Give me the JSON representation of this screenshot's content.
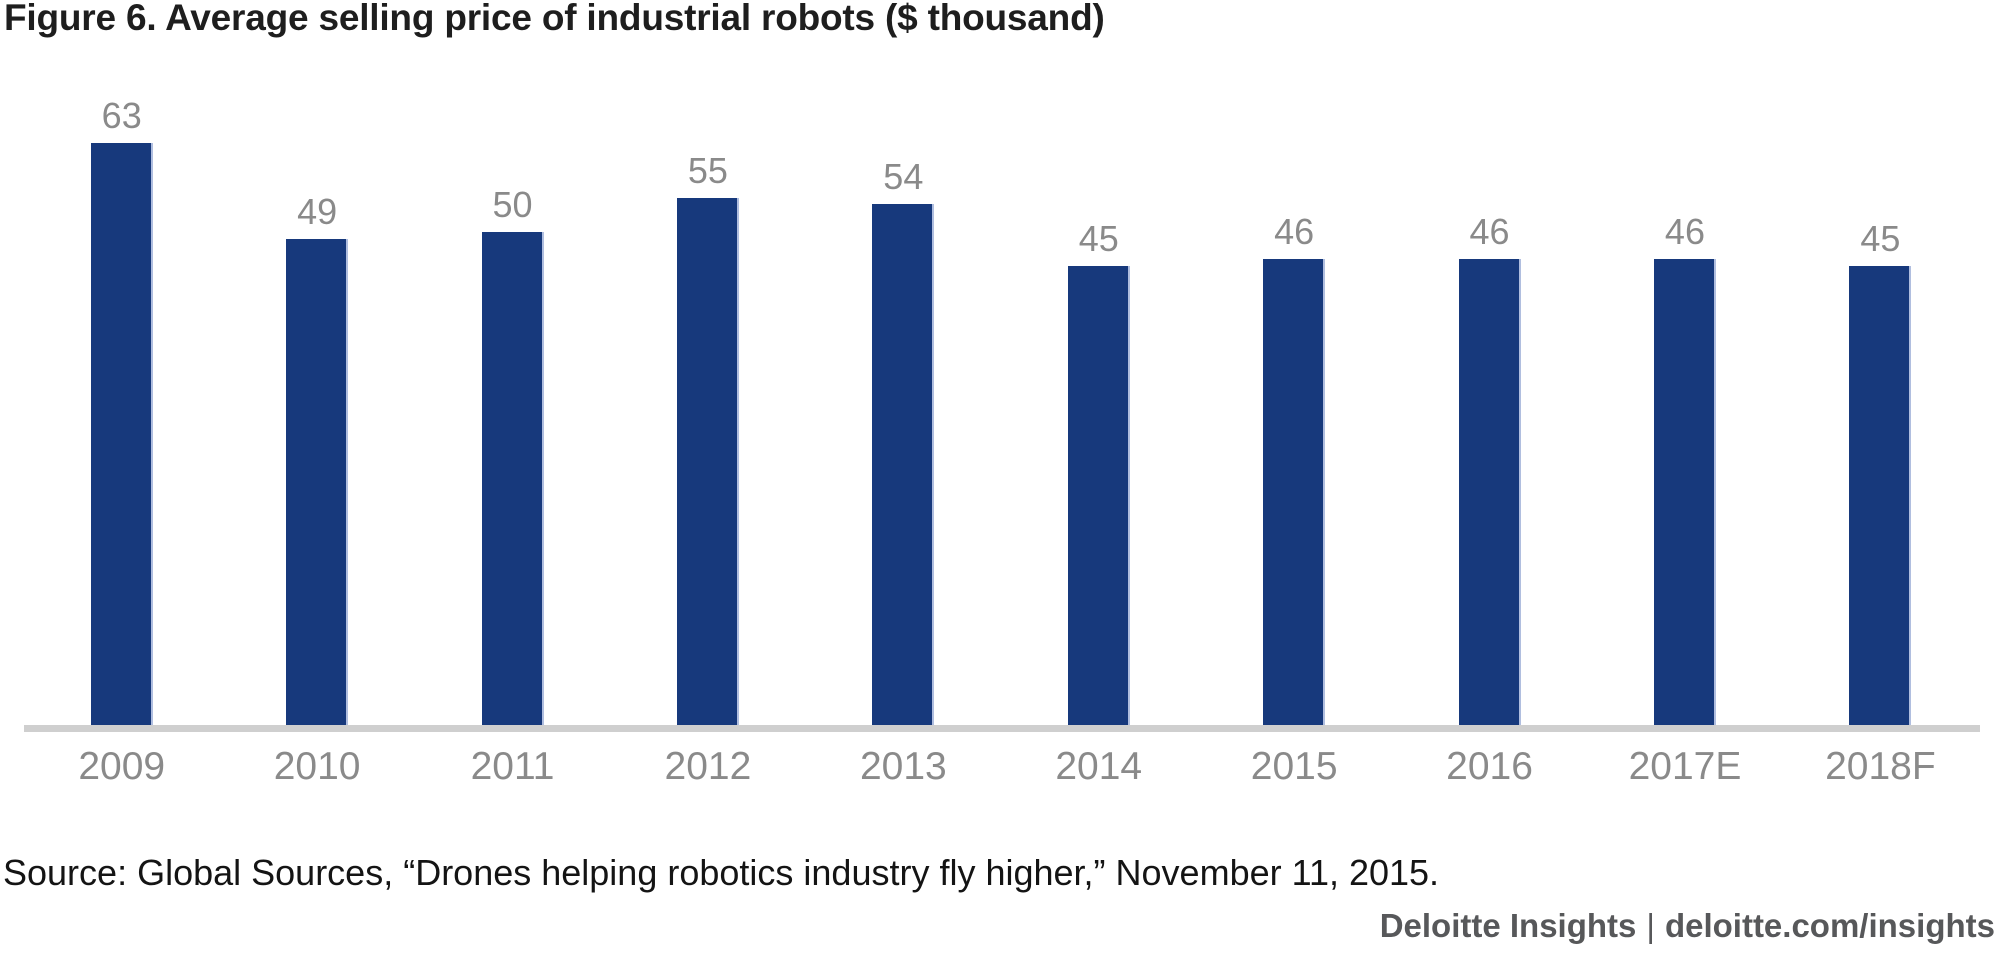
{
  "figure": {
    "title": "Figure 6. Average selling price of industrial robots ($ thousand)"
  },
  "chart_data": {
    "type": "bar",
    "categories": [
      "2009",
      "2010",
      "2011",
      "2012",
      "2013",
      "2014",
      "2015",
      "2016",
      "2017E",
      "2018F"
    ],
    "values": [
      63,
      49,
      50,
      55,
      54,
      45,
      46,
      46,
      46,
      45
    ],
    "title": "Figure 6. Average selling price of industrial robots ($ thousand)",
    "xlabel": "",
    "ylabel": "",
    "ylim": [
      0,
      70
    ],
    "grid": false,
    "legend": false,
    "value_labels_shown": true,
    "bar_color": "#17397c",
    "value_label_color": "#8a8a8a",
    "tick_label_color": "#8a8a8a",
    "axis_line_color": "#cfcfcf"
  },
  "source": {
    "text": "Source: Global Sources, “Drones helping robotics industry fly higher,” November 11, 2015."
  },
  "footer": {
    "brand": "Deloitte Insights",
    "separator": "|",
    "link": "deloitte.com/insights"
  }
}
